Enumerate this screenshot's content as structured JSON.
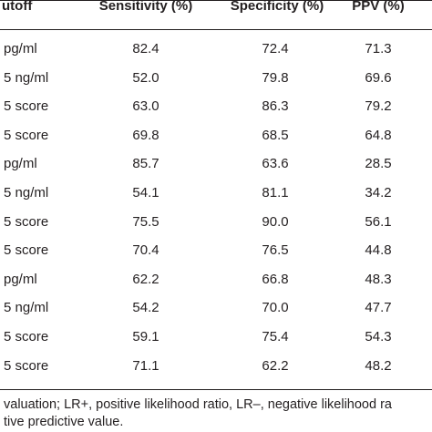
{
  "table": {
    "headers": [
      "utoff",
      "Sensitivity (%)",
      "Specificity (%)",
      "PPV (%)"
    ],
    "rows": [
      [
        "pg/ml",
        "82.4",
        "72.4",
        "71.3"
      ],
      [
        "5 ng/ml",
        "52.0",
        "79.8",
        "69.6"
      ],
      [
        "5 score",
        "63.0",
        "86.3",
        "79.2"
      ],
      [
        "5 score",
        "69.8",
        "68.5",
        "64.8"
      ],
      [
        "pg/ml",
        "85.7",
        "63.6",
        "28.5"
      ],
      [
        "5 ng/ml",
        "54.1",
        "81.1",
        "34.2"
      ],
      [
        "5 score",
        "75.5",
        "90.0",
        "56.1"
      ],
      [
        "5 score",
        "70.4",
        "76.5",
        "44.8"
      ],
      [
        "pg/ml",
        "62.2",
        "66.8",
        "48.3"
      ],
      [
        "5 ng/ml",
        "54.2",
        "70.0",
        "47.7"
      ],
      [
        "5 score",
        "59.1",
        "75.4",
        "54.3"
      ],
      [
        "5 score",
        "71.1",
        "62.2",
        "48.2"
      ]
    ]
  },
  "footnote": {
    "line1": "valuation; LR+, positive likelihood ratio, LR–, negative likelihood ra",
    "line2": "tive predictive value."
  }
}
